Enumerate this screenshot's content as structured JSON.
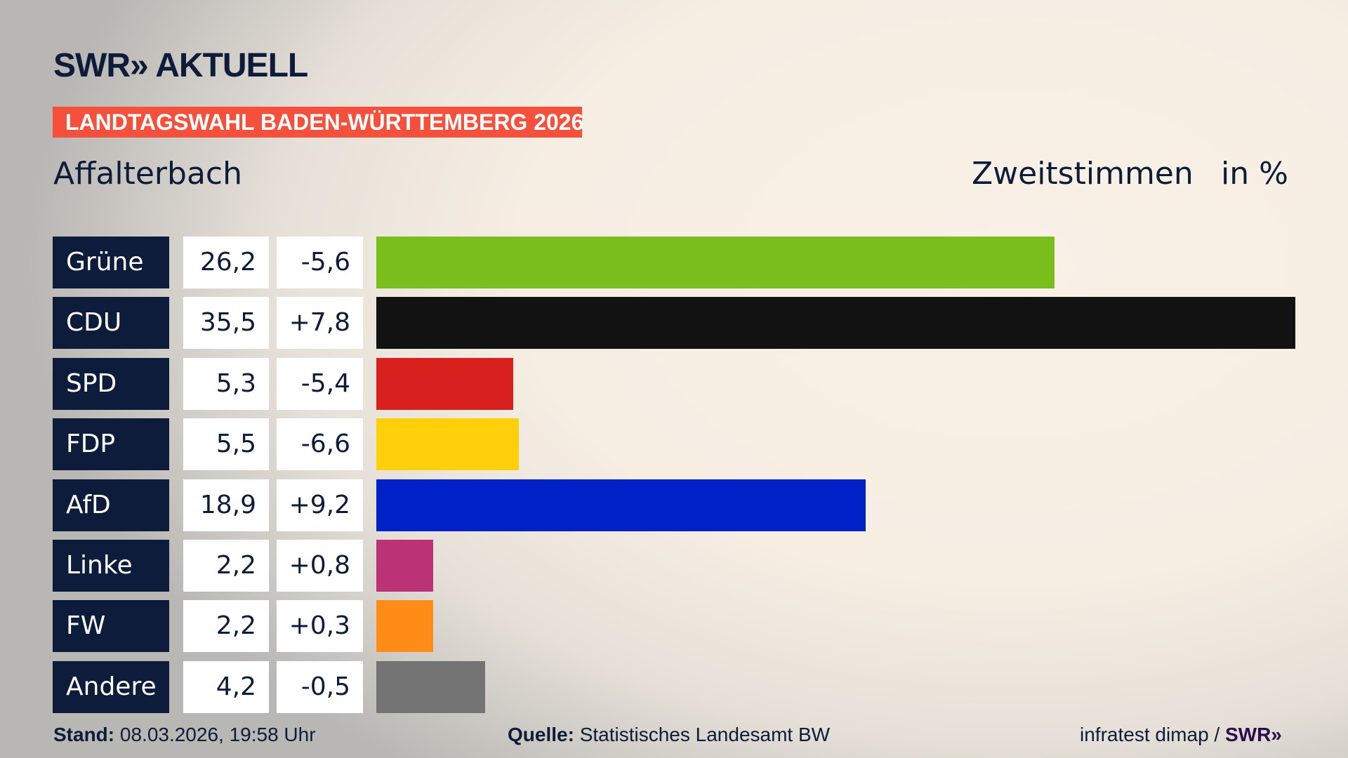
{
  "header": {
    "logo": "SWR» AKTUELL",
    "banner": "LANDTAGSWAHL BADEN-WÜRTTEMBERG 2026",
    "region": "Affalterbach",
    "vote_type": "Zweitstimmen",
    "unit": "in %"
  },
  "chart_data": {
    "type": "bar",
    "orientation": "horizontal",
    "categories": [
      "Grüne",
      "CDU",
      "SPD",
      "FDP",
      "AfD",
      "Linke",
      "FW",
      "Andere"
    ],
    "values": [
      26.2,
      35.5,
      5.3,
      5.5,
      18.9,
      2.2,
      2.2,
      4.2
    ],
    "value_labels": [
      "26,2",
      "35,5",
      "5,3",
      "5,5",
      "18,9",
      "2,2",
      "2,2",
      "4,2"
    ],
    "change_labels": [
      "-5,6",
      "+7,8",
      "-5,4",
      "-6,6",
      "+9,2",
      "+0,8",
      "+0,3",
      "-0,5"
    ],
    "changes": [
      -5.6,
      7.8,
      -5.4,
      -6.6,
      9.2,
      0.8,
      0.3,
      -0.5
    ],
    "colors": [
      "#7abe1e",
      "#121212",
      "#d8201e",
      "#ffd00a",
      "#0020c8",
      "#bc3276",
      "#ff8c16",
      "#737373"
    ],
    "xlim": [
      0,
      35.5
    ]
  },
  "footer": {
    "stand_label": "Stand:",
    "stand_value": "08.03.2026, 19:58 Uhr",
    "source_label": "Quelle:",
    "source_value": "Statistisches Landesamt BW",
    "credit": "infratest dimap /",
    "credit_logo": "SWR»"
  }
}
